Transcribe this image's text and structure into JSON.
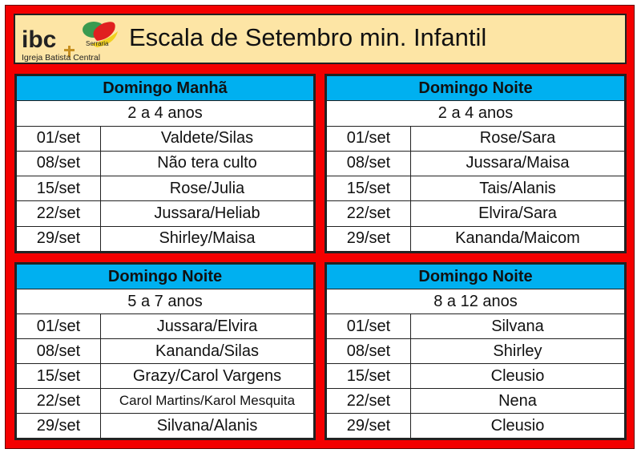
{
  "logo": {
    "text": "ibc",
    "subtitle": "Serraria",
    "tagline": "Igreja Batista Central"
  },
  "title": "Escala de Setembro min. Infantil",
  "colors": {
    "frame": "#f40000",
    "header_bg": "#fde5a5",
    "section_bg": "#00b0f0"
  },
  "blocks": [
    {
      "heading": "Domingo Manhã",
      "age": "2 a 4 anos",
      "rows": [
        {
          "date": "01/set",
          "names": "Valdete/Silas"
        },
        {
          "date": "08/set",
          "names": "Não tera culto"
        },
        {
          "date": "15/set",
          "names": "Rose/Julia"
        },
        {
          "date": "22/set",
          "names": "Jussara/Heliab"
        },
        {
          "date": "29/set",
          "names": "Shirley/Maisa"
        }
      ]
    },
    {
      "heading": "Domingo Noite",
      "age": "2 a 4 anos",
      "rows": [
        {
          "date": "01/set",
          "names": "Rose/Sara"
        },
        {
          "date": "08/set",
          "names": "Jussara/Maisa"
        },
        {
          "date": "15/set",
          "names": "Tais/Alanis"
        },
        {
          "date": "22/set",
          "names": "Elvira/Sara"
        },
        {
          "date": "29/set",
          "names": "Kananda/Maicom"
        }
      ]
    },
    {
      "heading": "Domingo Noite",
      "age": "5 a 7 anos",
      "rows": [
        {
          "date": "01/set",
          "names": "Jussara/Elvira"
        },
        {
          "date": "08/set",
          "names": "Kananda/Silas"
        },
        {
          "date": "15/set",
          "names": "Grazy/Carol Vargens"
        },
        {
          "date": "22/set",
          "names": "Carol Martins/Karol Mesquita"
        },
        {
          "date": "29/set",
          "names": "Silvana/Alanis"
        }
      ]
    },
    {
      "heading": "Domingo Noite",
      "age": "8 a 12 anos",
      "rows": [
        {
          "date": "01/set",
          "names": "Silvana"
        },
        {
          "date": "08/set",
          "names": "Shirley"
        },
        {
          "date": "15/set",
          "names": "Cleusio"
        },
        {
          "date": "22/set",
          "names": "Nena"
        },
        {
          "date": "29/set",
          "names": "Cleusio"
        }
      ]
    }
  ]
}
